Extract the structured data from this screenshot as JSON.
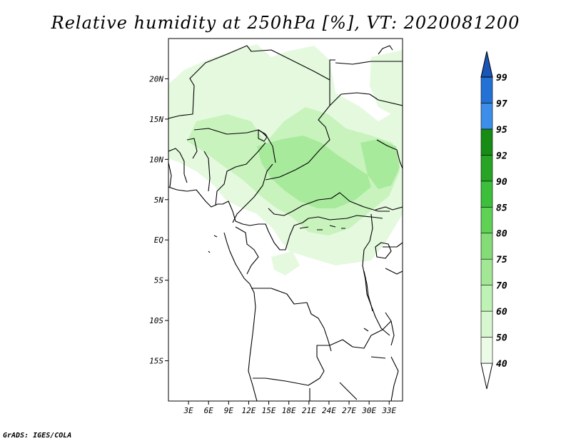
{
  "title": "Relative humidity at 250hPa [%], VT: 2020081200",
  "credit": "GrADS: IGES/COLA",
  "map": {
    "lon_range": [
      0,
      35
    ],
    "lat_range": [
      -20,
      25
    ],
    "lat_ticks": [
      {
        "value": 20,
        "label": "20N"
      },
      {
        "value": 15,
        "label": "15N"
      },
      {
        "value": 10,
        "label": "10N"
      },
      {
        "value": 5,
        "label": "5N"
      },
      {
        "value": 0,
        "label": "EQ"
      },
      {
        "value": -5,
        "label": "5S"
      },
      {
        "value": -10,
        "label": "10S"
      },
      {
        "value": -15,
        "label": "15S"
      }
    ],
    "lon_ticks": [
      {
        "value": 3,
        "label": "3E"
      },
      {
        "value": 6,
        "label": "6E"
      },
      {
        "value": 9,
        "label": "9E"
      },
      {
        "value": 12,
        "label": "12E"
      },
      {
        "value": 15,
        "label": "15E"
      },
      {
        "value": 18,
        "label": "18E"
      },
      {
        "value": 21,
        "label": "21E"
      },
      {
        "value": 24,
        "label": "24E"
      },
      {
        "value": 27,
        "label": "27E"
      },
      {
        "value": 30,
        "label": "30E"
      },
      {
        "value": 33,
        "label": "33E"
      }
    ]
  },
  "legend": {
    "levels": [
      "40",
      "50",
      "60",
      "70",
      "75",
      "80",
      "85",
      "90",
      "92",
      "95",
      "97",
      "99"
    ],
    "colors": [
      "#ebfbe6",
      "#d6f7cf",
      "#bff2b5",
      "#a3e796",
      "#84dc77",
      "#5fd155",
      "#3cbf3a",
      "#27a424",
      "#168c14",
      "#3d8ee8",
      "#2471d6",
      "#1a55b8"
    ]
  },
  "colors": {
    "rh_light": "#e5f9df",
    "rh_mid": "#c8f3bd",
    "rh_high": "#a8ea9c",
    "border": "#000000"
  }
}
